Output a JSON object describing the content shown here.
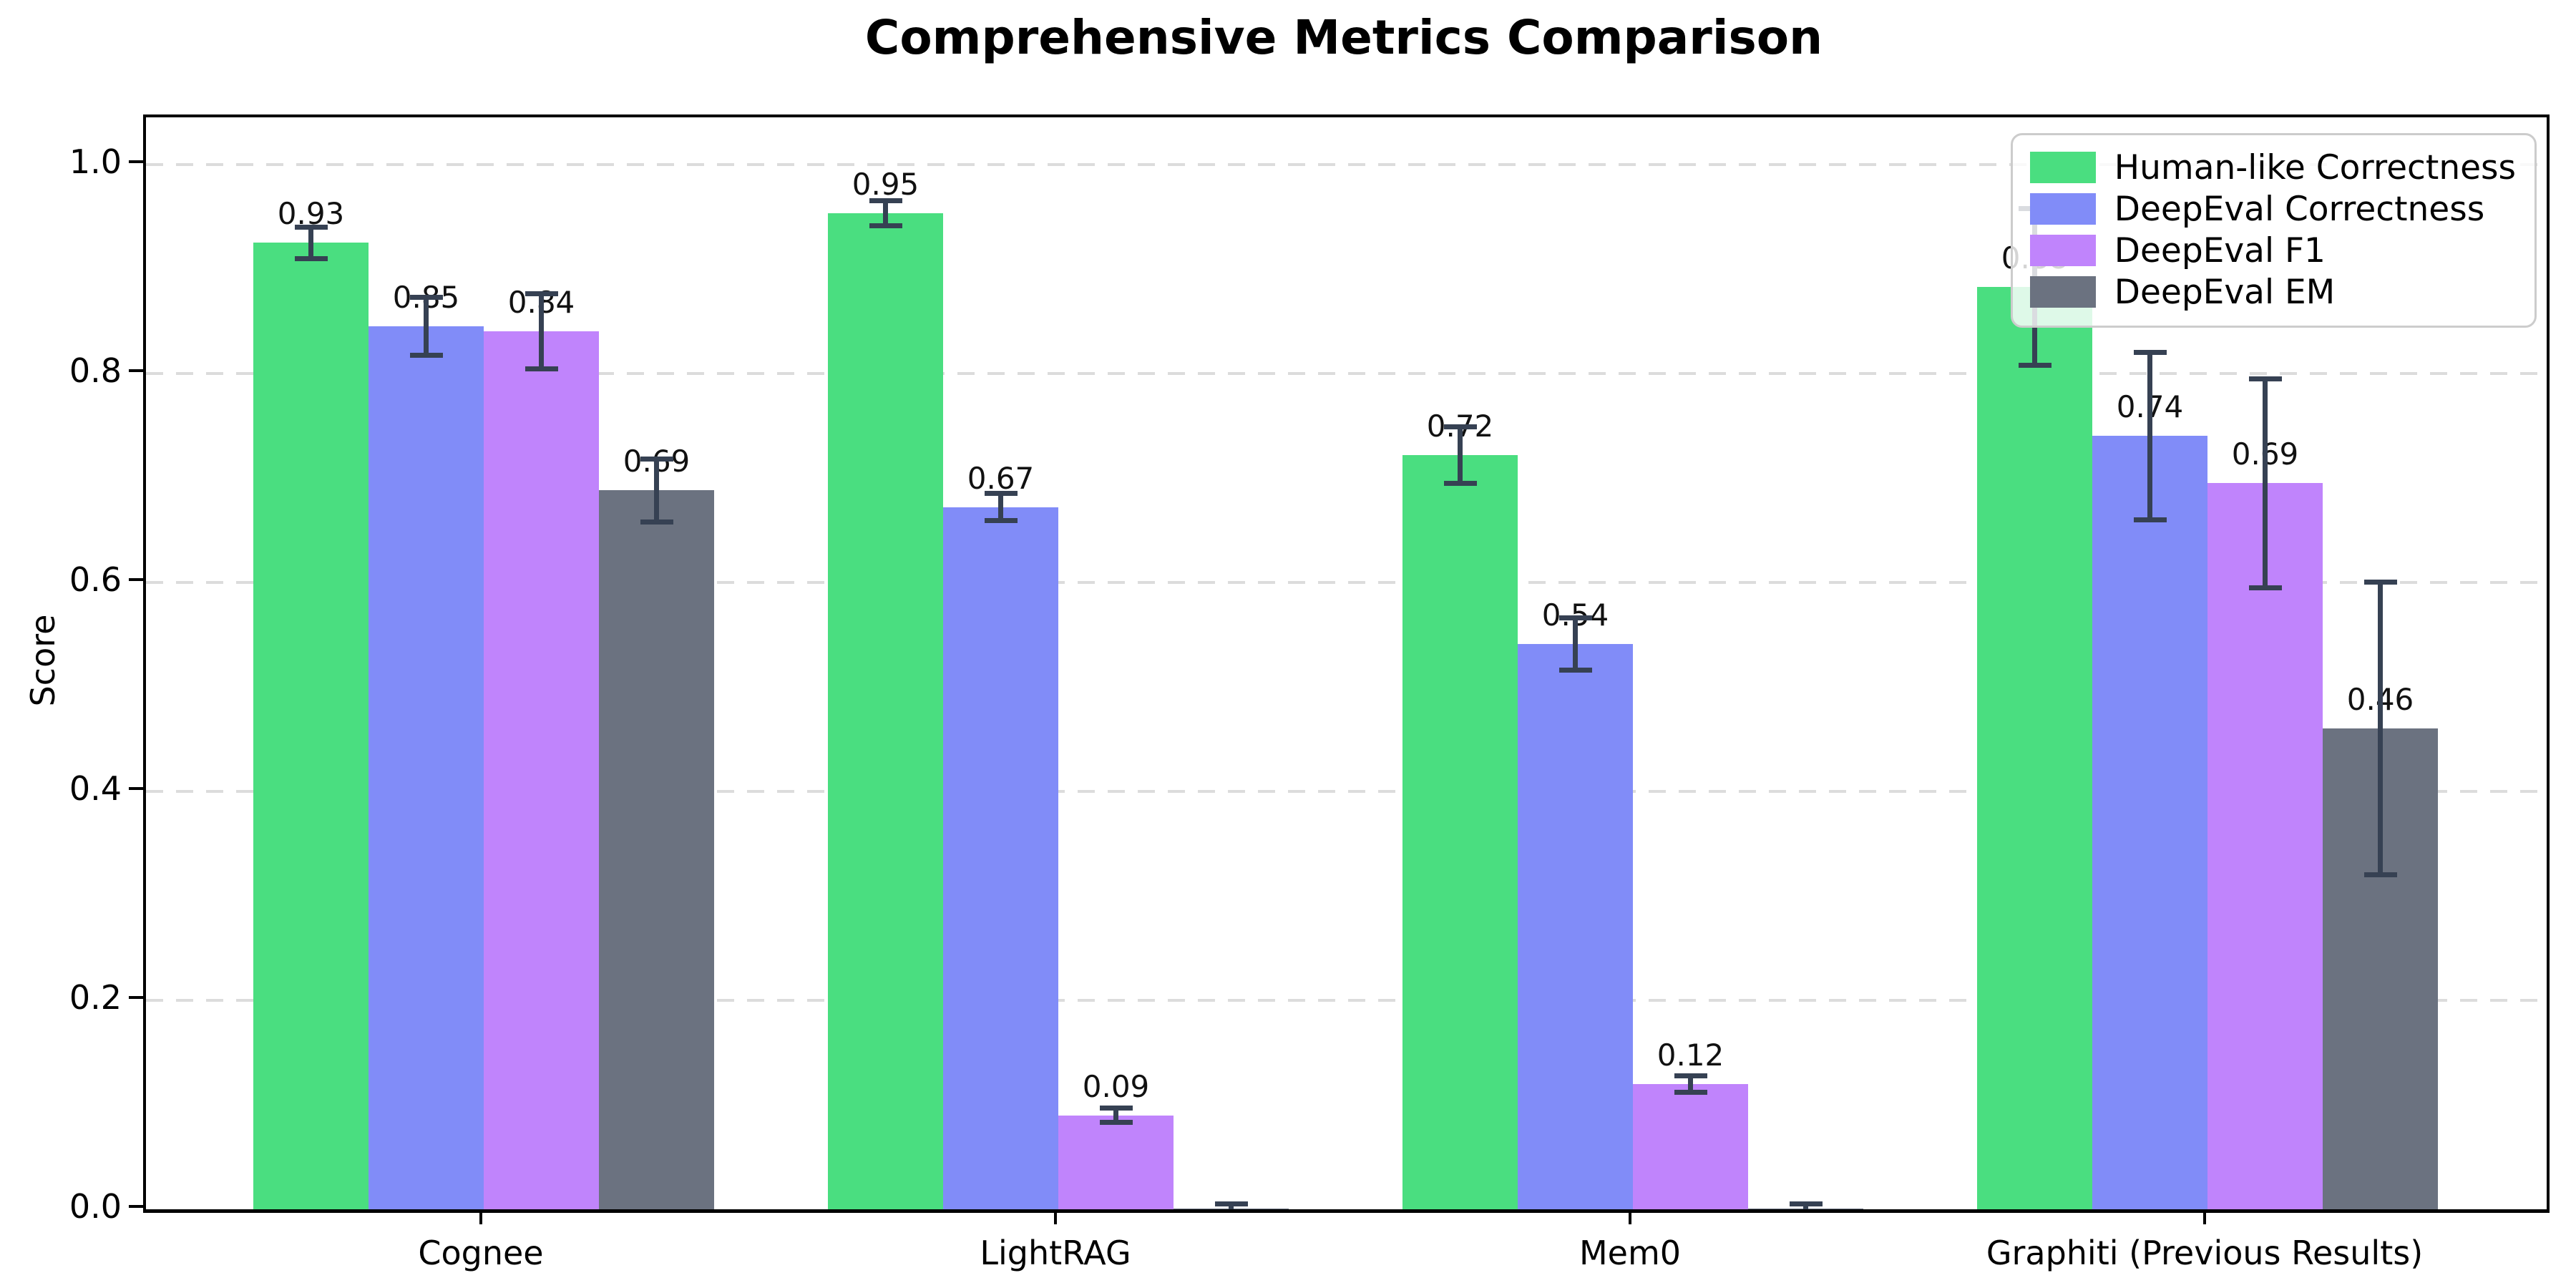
{
  "chart_data": {
    "type": "bar",
    "title": "Comprehensive Metrics Comparison",
    "ylabel": "Score",
    "categories": [
      "Cognee",
      "LightRAG",
      "Mem0",
      "Graphiti (Previous Results)"
    ],
    "series": [
      {
        "name": "Human-like Correctness",
        "color": "#4ade80",
        "values": [
          0.925,
          0.953,
          0.722,
          0.883
        ],
        "labels": [
          "0.93",
          "0.95",
          "0.72",
          "0.88"
        ],
        "errors": [
          0.015,
          0.012,
          0.027,
          0.075
        ]
      },
      {
        "name": "DeepEval Correctness",
        "color": "#818cf8",
        "values": [
          0.845,
          0.672,
          0.541,
          0.74
        ],
        "labels": [
          "0.85",
          "0.67",
          "0.54",
          "0.74"
        ],
        "errors": [
          0.028,
          0.013,
          0.025,
          0.08
        ]
      },
      {
        "name": "DeepEval F1",
        "color": "#c084fc",
        "values": [
          0.84,
          0.09,
          0.12,
          0.695
        ],
        "labels": [
          "0.84",
          "0.09",
          "0.12",
          "0.69"
        ],
        "errors": [
          0.036,
          0.007,
          0.008,
          0.1
        ]
      },
      {
        "name": "DeepEval EM",
        "color": "#6b7280",
        "values": [
          0.688,
          0.001,
          0.001,
          0.46
        ],
        "labels": [
          "0.69",
          "",
          "",
          "0.46"
        ],
        "errors": [
          0.03,
          0.004,
          0.004,
          0.14
        ]
      }
    ],
    "ytick_labels": [
      "0.0",
      "0.2",
      "0.4",
      "0.6",
      "0.8",
      "1.0"
    ],
    "ytick_values": [
      0.0,
      0.2,
      0.4,
      0.6,
      0.8,
      1.0
    ],
    "ylim": [
      0,
      1.045
    ],
    "grid": "horizontal-dashed",
    "legend_position": "upper right",
    "error_bar_color": "#364153"
  }
}
